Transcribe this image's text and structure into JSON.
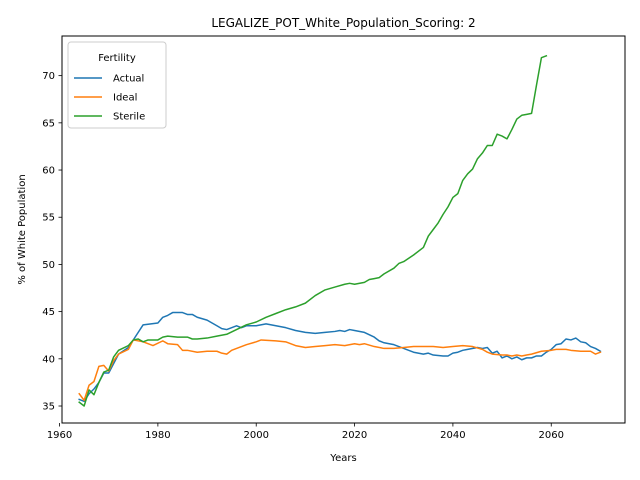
{
  "chart_data": {
    "type": "line",
    "title": "LEGALIZE_POT_White_Population_Scoring: 2",
    "xlabel": "Years",
    "ylabel": "% of White Population",
    "xlim": [
      1960.5,
      2075
    ],
    "ylim": [
      33.2,
      74.2
    ],
    "xticks": [
      1960,
      1980,
      2000,
      2020,
      2040,
      2060
    ],
    "yticks": [
      35,
      40,
      45,
      50,
      55,
      60,
      65,
      70
    ],
    "legend": {
      "title": "Fertility",
      "placement": "top-left"
    },
    "series": [
      {
        "name": "Actual",
        "color": "#1f77b4",
        "x": [
          1964,
          1965,
          1966,
          1967,
          1968,
          1969,
          1970,
          1972,
          1974,
          1976,
          1977,
          1980,
          1981,
          1982,
          1983,
          1985,
          1986,
          1987,
          1988,
          1990,
          1992,
          1993,
          1994,
          1996,
          1997,
          1998,
          2000,
          2002,
          2004,
          2006,
          2008,
          2010,
          2012,
          2014,
          2016,
          2017,
          2018,
          2019,
          2020,
          2022,
          2024,
          2025,
          2026,
          2028,
          2030,
          2032,
          2034,
          2035,
          2036,
          2038,
          2039,
          2040,
          2041,
          2042,
          2043,
          2045,
          2046,
          2047,
          2048,
          2049,
          2050,
          2051,
          2052,
          2053,
          2054,
          2055,
          2056,
          2057,
          2058,
          2059,
          2060,
          2061,
          2062,
          2063,
          2064,
          2065,
          2066,
          2067,
          2068,
          2069,
          2070
        ],
        "values": [
          35.7,
          35.5,
          36.3,
          36.8,
          37.5,
          38.5,
          38.5,
          40.5,
          41.2,
          42.8,
          43.6,
          43.8,
          44.4,
          44.6,
          44.9,
          44.9,
          44.7,
          44.7,
          44.4,
          44.1,
          43.5,
          43.2,
          43.1,
          43.5,
          43.3,
          43.5,
          43.5,
          43.7,
          43.5,
          43.3,
          43.0,
          42.8,
          42.7,
          42.8,
          42.9,
          43.0,
          42.9,
          43.1,
          43.0,
          42.8,
          42.3,
          41.9,
          41.7,
          41.5,
          41.1,
          40.7,
          40.5,
          40.6,
          40.4,
          40.3,
          40.3,
          40.6,
          40.7,
          40.9,
          41.0,
          41.2,
          41.1,
          41.2,
          40.6,
          40.8,
          40.1,
          40.3,
          40.0,
          40.2,
          39.9,
          40.1,
          40.1,
          40.3,
          40.3,
          40.7,
          41.0,
          41.5,
          41.6,
          42.1,
          42.0,
          42.2,
          41.8,
          41.7,
          41.3,
          41.1,
          40.8
        ]
      },
      {
        "name": "Ideal",
        "color": "#ff7f0e",
        "x": [
          1964,
          1965,
          1966,
          1967,
          1968,
          1969,
          1970,
          1971,
          1972,
          1974,
          1975,
          1977,
          1979,
          1981,
          1982,
          1984,
          1985,
          1986,
          1988,
          1990,
          1992,
          1993,
          1994,
          1995,
          1996,
          1998,
          2000,
          2001,
          2004,
          2006,
          2008,
          2010,
          2012,
          2014,
          2016,
          2018,
          2020,
          2021,
          2022,
          2024,
          2026,
          2028,
          2030,
          2032,
          2034,
          2036,
          2038,
          2040,
          2042,
          2044,
          2046,
          2047,
          2048,
          2050,
          2051,
          2052,
          2053,
          2054,
          2055,
          2056,
          2058,
          2060,
          2061,
          2062,
          2063,
          2064,
          2066,
          2068,
          2069,
          2070
        ],
        "values": [
          36.3,
          35.6,
          37.2,
          37.6,
          39.2,
          39.3,
          38.7,
          39.8,
          40.5,
          41.0,
          42.0,
          41.8,
          41.4,
          41.9,
          41.6,
          41.5,
          40.9,
          40.9,
          40.7,
          40.8,
          40.8,
          40.6,
          40.5,
          40.9,
          41.1,
          41.5,
          41.8,
          42.0,
          41.9,
          41.8,
          41.4,
          41.2,
          41.3,
          41.4,
          41.5,
          41.4,
          41.6,
          41.5,
          41.6,
          41.3,
          41.1,
          41.1,
          41.2,
          41.3,
          41.3,
          41.3,
          41.2,
          41.3,
          41.4,
          41.3,
          41.0,
          40.7,
          40.5,
          40.4,
          40.4,
          40.3,
          40.4,
          40.3,
          40.4,
          40.5,
          40.8,
          40.9,
          41.0,
          41.0,
          41.0,
          40.9,
          40.8,
          40.8,
          40.5,
          40.7
        ]
      },
      {
        "name": "Sterile",
        "color": "#2ca02c",
        "x": [
          1964,
          1965,
          1966,
          1967,
          1968,
          1969,
          1970,
          1971,
          1972,
          1974,
          1975,
          1976,
          1977,
          1978,
          1980,
          1981,
          1982,
          1984,
          1986,
          1987,
          1988,
          1990,
          1992,
          1994,
          1996,
          1998,
          2000,
          2002,
          2004,
          2006,
          2008,
          2010,
          2012,
          2014,
          2016,
          2018,
          2019,
          2020,
          2022,
          2023,
          2024,
          2025,
          2026,
          2028,
          2029,
          2030,
          2032,
          2034,
          2035,
          2036,
          2037,
          2038,
          2039,
          2040,
          2041,
          2042,
          2043,
          2044,
          2045,
          2046,
          2047,
          2048,
          2049,
          2050,
          2051,
          2052,
          2053,
          2054,
          2055,
          2056,
          2057,
          2058,
          2059
        ],
        "values": [
          35.4,
          35.0,
          36.7,
          36.2,
          37.5,
          38.6,
          38.8,
          40.2,
          40.9,
          41.4,
          42.0,
          42.1,
          41.8,
          42.0,
          42.0,
          42.3,
          42.4,
          42.3,
          42.3,
          42.1,
          42.1,
          42.2,
          42.4,
          42.6,
          43.1,
          43.6,
          43.9,
          44.4,
          44.8,
          45.2,
          45.5,
          45.9,
          46.7,
          47.3,
          47.6,
          47.9,
          48.0,
          47.9,
          48.1,
          48.4,
          48.5,
          48.6,
          49.0,
          49.6,
          50.1,
          50.3,
          51.0,
          51.8,
          53.0,
          53.7,
          54.4,
          55.3,
          56.1,
          57.1,
          57.5,
          58.9,
          59.6,
          60.1,
          61.2,
          61.8,
          62.6,
          62.6,
          63.8,
          63.6,
          63.3,
          64.3,
          65.4,
          65.8,
          65.9,
          66.0,
          69.0,
          71.9,
          72.1
        ]
      }
    ]
  }
}
